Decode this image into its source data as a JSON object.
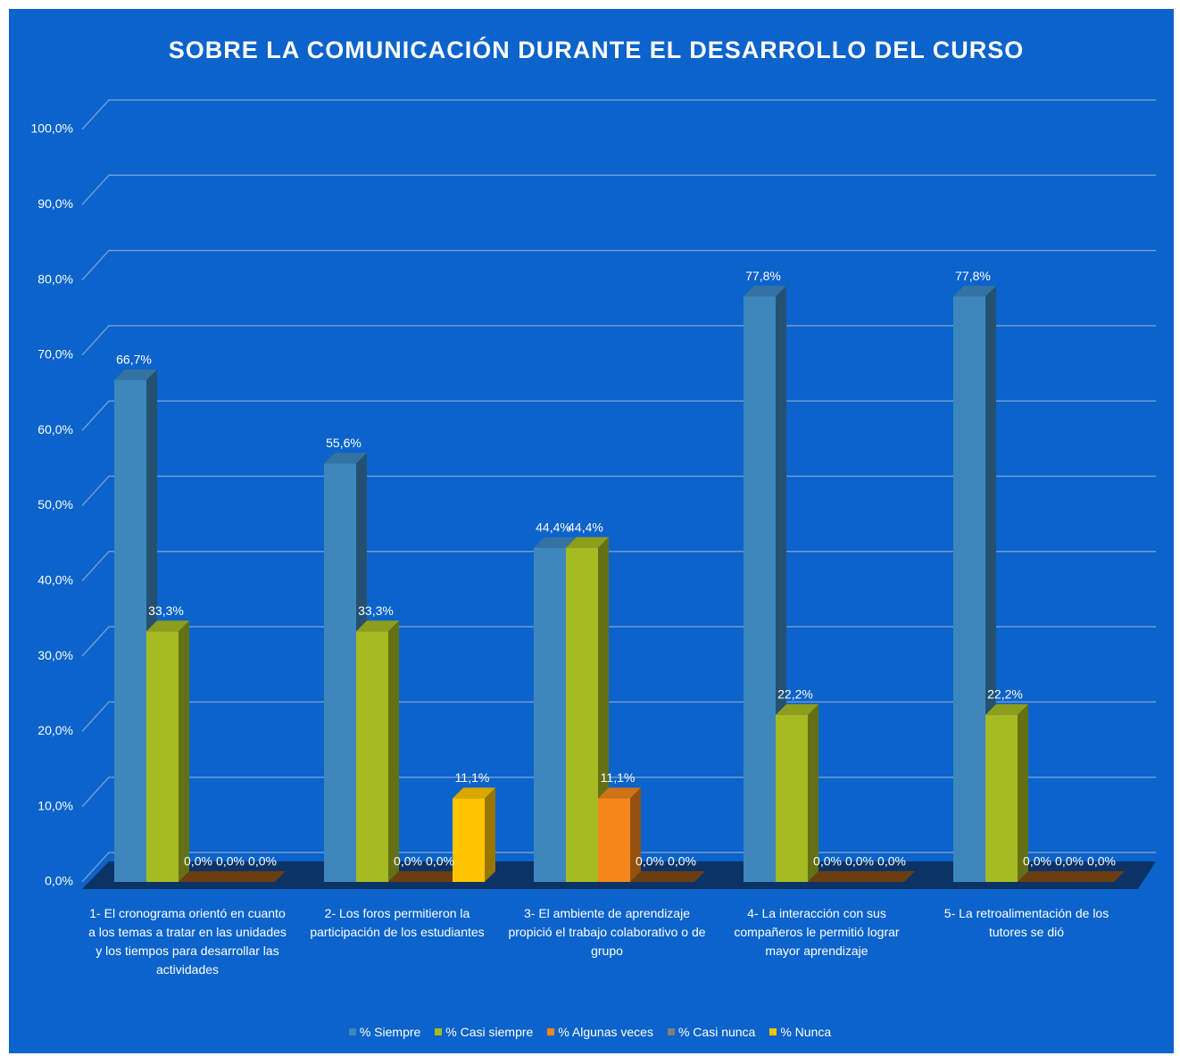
{
  "chart_data": {
    "type": "bar3d",
    "title": "SOBRE LA COMUNICACIÓN DURANTE EL DESARROLLO DEL CURSO",
    "categories": [
      "1- El cronograma orientó en cuanto a los temas a tratar en las unidades y los tiempos para desarrollar las actividades",
      "2- Los foros permitieron la participación de los estudiantes",
      "3- El ambiente de aprendizaje propició el trabajo colaborativo o de grupo",
      "4- La interacción con sus compañeros le permitió lograr mayor aprendizaje",
      "5- La retroalimentación de los tutores se dió"
    ],
    "series": [
      {
        "name": "% Siempre",
        "color": "#3d87bd",
        "values": [
          66.7,
          55.6,
          44.4,
          77.8,
          77.8
        ],
        "value_labels": [
          "66,7%",
          "55,6%",
          "44,4%",
          "77,8%",
          "77,8%"
        ]
      },
      {
        "name": "% Casi siempre",
        "color": "#a6ba22",
        "values": [
          33.3,
          33.3,
          44.4,
          22.2,
          22.2
        ],
        "value_labels": [
          "33,3%",
          "33,3%",
          "44,4%",
          "22,2%",
          "22,2%"
        ]
      },
      {
        "name": "% Algunas veces",
        "color": "#f5871a",
        "values": [
          0,
          0,
          11.1,
          0,
          0
        ],
        "value_labels": [
          "0,0%",
          "0,0%",
          "11,1%",
          "0,0%",
          "0,0%"
        ]
      },
      {
        "name": "% Casi nunca",
        "color": "#7f7f7f",
        "values": [
          0,
          0,
          0,
          0,
          0
        ],
        "value_labels": [
          "0,0%",
          "0,0%",
          "0,0%",
          "0,0%",
          "0,0%"
        ]
      },
      {
        "name": "% Nunca",
        "color": "#ffc400",
        "values": [
          0,
          11.1,
          0,
          0,
          0
        ],
        "value_labels": [
          "0,0%",
          "11,1%",
          "0,0%",
          "0,0%",
          "0,0%"
        ]
      }
    ],
    "ylim": [
      0,
      100
    ],
    "yticks": [
      {
        "value": 0,
        "label": "0,0%"
      },
      {
        "value": 10,
        "label": "10,0%"
      },
      {
        "value": 20,
        "label": "20,0%"
      },
      {
        "value": 30,
        "label": "30,0%"
      },
      {
        "value": 40,
        "label": "40,0%"
      },
      {
        "value": 50,
        "label": "50,0%"
      },
      {
        "value": 60,
        "label": "60,0%"
      },
      {
        "value": 70,
        "label": "70,0%"
      },
      {
        "value": 80,
        "label": "80,0%"
      },
      {
        "value": 90,
        "label": "90,0%"
      },
      {
        "value": 100,
        "label": "100,0%"
      }
    ],
    "grid": true,
    "legend": "bottom"
  }
}
